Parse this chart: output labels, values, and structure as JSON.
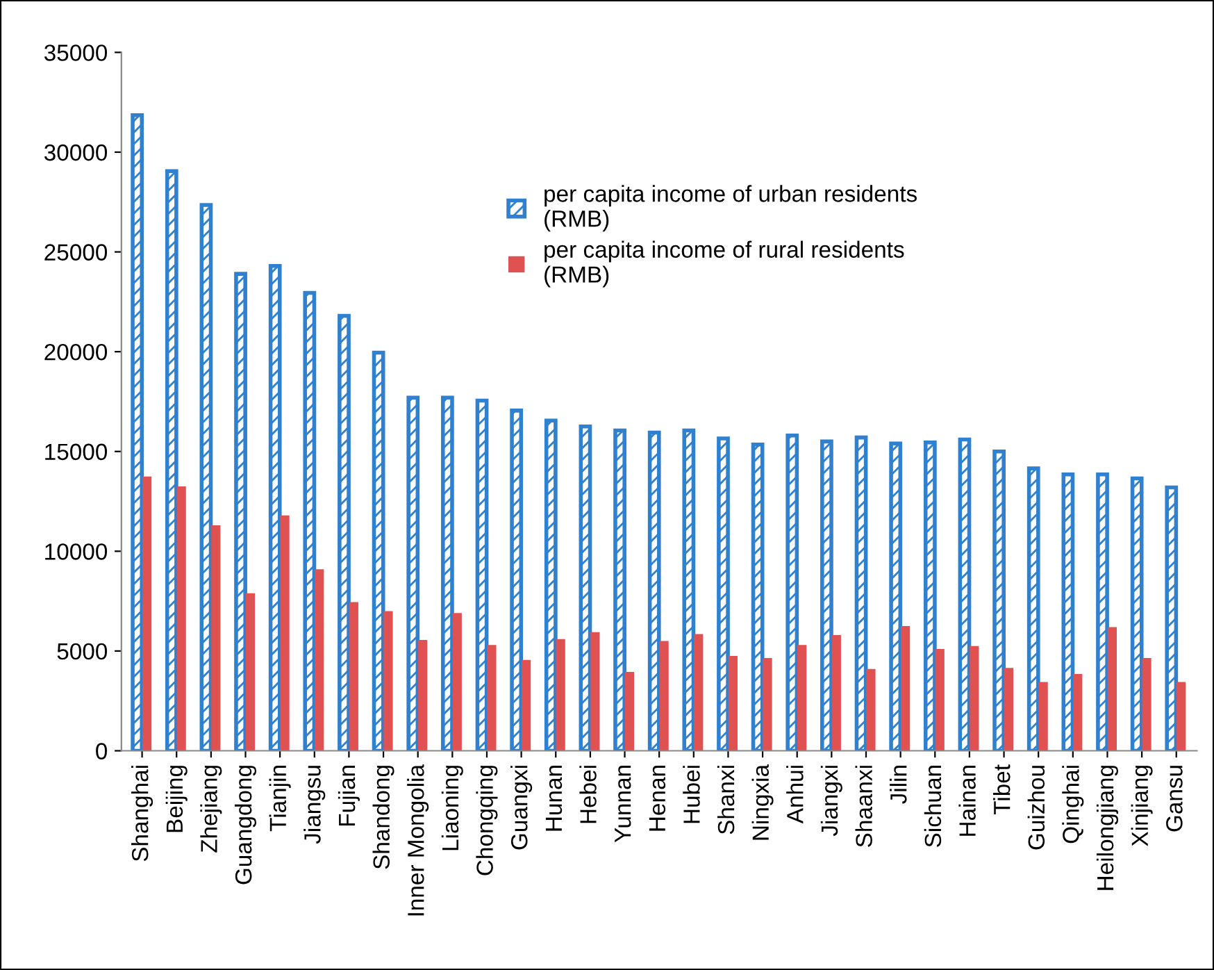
{
  "chart_data": {
    "type": "bar",
    "categories": [
      "Shanghai",
      "Beijing",
      "Zhejiang",
      "Guangdong",
      "Tianjin",
      "Jiangsu",
      "Fujian",
      "Shandong",
      "Inner Mongolia",
      "Liaoning",
      "Chongqing",
      "Guangxi",
      "Hunan",
      "Hebei",
      "Yunnan",
      "Henan",
      "Hubei",
      "Shanxi",
      "Ningxia",
      "Anhui",
      "Jiangxi",
      "Shaanxi",
      "Jilin",
      "Sichuan",
      "Hainan",
      "Tibet",
      "Guizhou",
      "Qinghai",
      "Heilongjiang",
      "Xinjiang",
      "Gansu"
    ],
    "series": [
      {
        "name": "per capita income of urban residents\n(RMB)",
        "color": "#2f80cf",
        "values": [
          31850,
          29050,
          27350,
          23900,
          24300,
          22950,
          21800,
          19950,
          17700,
          17700,
          17550,
          17050,
          16550,
          16250,
          16050,
          15950,
          16050,
          15650,
          15350,
          15800,
          15500,
          15700,
          15400,
          15450,
          15600,
          15000,
          14150,
          13850,
          13850,
          13650,
          13200
        ]
      },
      {
        "name": "per capita income of rural residents\n(RMB)",
        "color": "#e05252",
        "values": [
          13750,
          13250,
          11300,
          7900,
          11800,
          9100,
          7450,
          7000,
          5550,
          6900,
          5300,
          4550,
          5600,
          5950,
          3950,
          5500,
          5850,
          4750,
          4650,
          5300,
          5800,
          4100,
          6250,
          5100,
          5250,
          4150,
          3450,
          3850,
          6200,
          4650,
          3450
        ]
      }
    ],
    "ylim": [
      0,
      35000
    ],
    "yticks": [
      0,
      5000,
      10000,
      15000,
      20000,
      25000,
      30000,
      35000
    ],
    "grid": false,
    "legend": "top"
  }
}
